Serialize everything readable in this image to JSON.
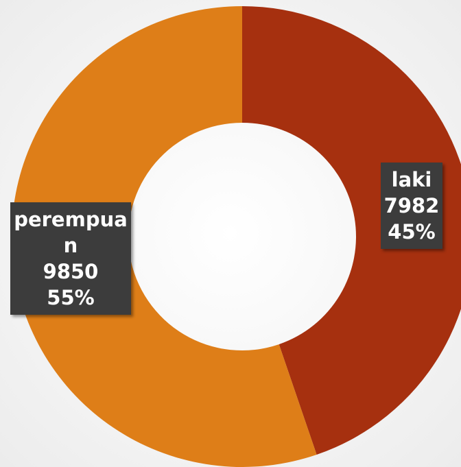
{
  "chart_data": {
    "type": "donut",
    "categories": [
      "laki",
      "perempuan"
    ],
    "values": [
      7982,
      9850
    ],
    "percent_labels": [
      "45%",
      "55%"
    ],
    "colors": [
      "#a6300f",
      "#de7e18"
    ]
  }
}
